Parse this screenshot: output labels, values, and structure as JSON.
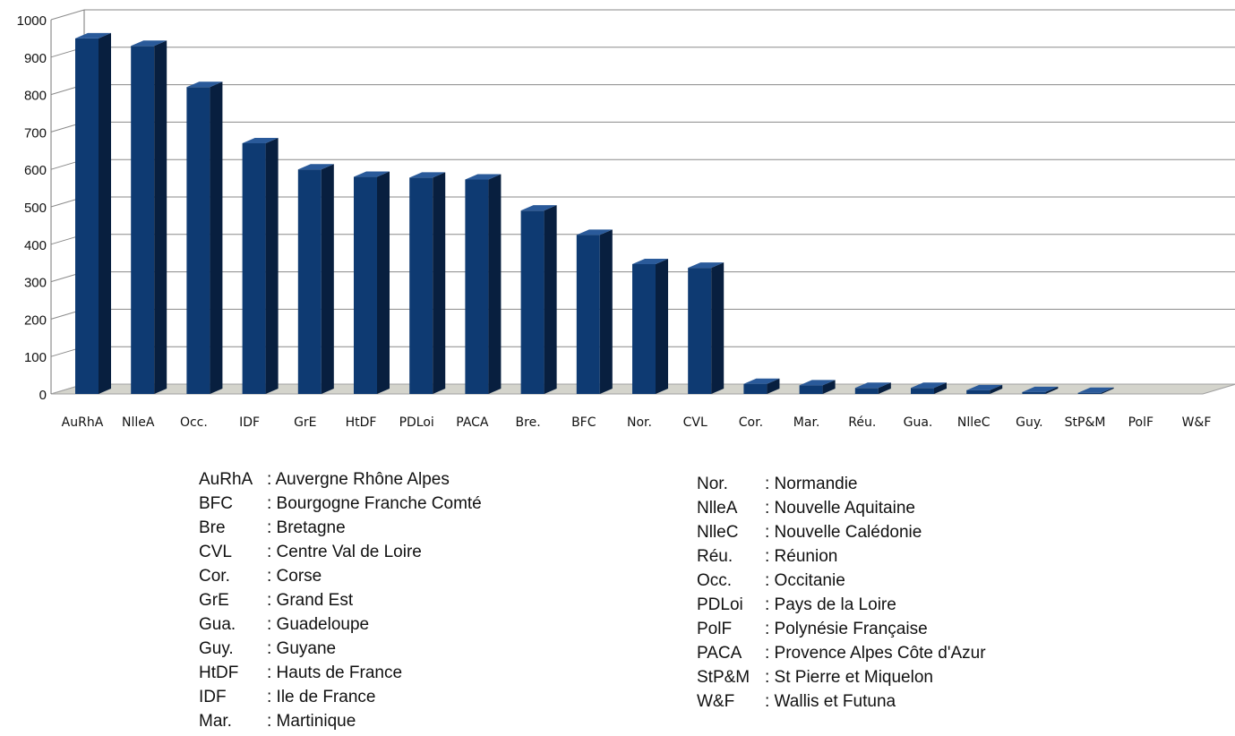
{
  "chart_data": {
    "type": "bar",
    "categories": [
      "AuRhA",
      "NlleA",
      "Occ.",
      "IDF",
      "GrE",
      "HtDF",
      "PDLoi",
      "PACA",
      "Bre.",
      "BFC",
      "Nor.",
      "CVL",
      "Cor.",
      "Mar.",
      "Réu.",
      "Gua.",
      "NlleC",
      "Guy.",
      "StP&M",
      "PolF",
      "W&F"
    ],
    "values": [
      950,
      930,
      820,
      670,
      600,
      580,
      578,
      573,
      490,
      425,
      347,
      337,
      27,
      23,
      16,
      16,
      10,
      5,
      3,
      0,
      0
    ],
    "yticks": [
      "0",
      "100",
      "200",
      "300",
      "400",
      "500",
      "600",
      "700",
      "800",
      "900",
      "1000"
    ],
    "ylim": [
      0,
      1000
    ],
    "grid": true,
    "colors": {
      "bar_front": "#0e3a72",
      "bar_side": "#081f3f",
      "bar_top": "#2a5a9a",
      "floor": "#d4d4cc",
      "grid": "#8a8a8a"
    }
  },
  "legend": {
    "left": [
      {
        "abbr": "AuRhA",
        "name": ": Auvergne Rhône Alpes"
      },
      {
        "abbr": "BFC",
        "name": ": Bourgogne Franche Comté"
      },
      {
        "abbr": "Bre",
        "name": ": Bretagne"
      },
      {
        "abbr": "CVL",
        "name": ": Centre Val de Loire"
      },
      {
        "abbr": "Cor.",
        "name": ": Corse"
      },
      {
        "abbr": "GrE",
        "name": ": Grand Est"
      },
      {
        "abbr": "Gua.",
        "name": ": Guadeloupe"
      },
      {
        "abbr": "Guy.",
        "name": ": Guyane"
      },
      {
        "abbr": "HtDF",
        "name": ": Hauts de France"
      },
      {
        "abbr": "IDF",
        "name": ": Ile de France"
      },
      {
        "abbr": "Mar.",
        "name": ": Martinique"
      }
    ],
    "right": [
      {
        "abbr": "Nor.",
        "name": ": Normandie"
      },
      {
        "abbr": "NlleA",
        "name": ": Nouvelle Aquitaine"
      },
      {
        "abbr": "NlleC",
        "name": ": Nouvelle Calédonie"
      },
      {
        "abbr": "Réu.",
        "name": ": Réunion"
      },
      {
        "abbr": "Occ.",
        "name": ": Occitanie"
      },
      {
        "abbr": "PDLoi",
        "name": ": Pays de la Loire"
      },
      {
        "abbr": "PolF",
        "name": ": Polynésie Française"
      },
      {
        "abbr": "PACA",
        "name": ": Provence Alpes Côte d'Azur"
      },
      {
        "abbr": "StP&M",
        "name": ": St Pierre et Miquelon"
      },
      {
        "abbr": "W&F",
        "name": ": Wallis et Futuna"
      }
    ]
  }
}
